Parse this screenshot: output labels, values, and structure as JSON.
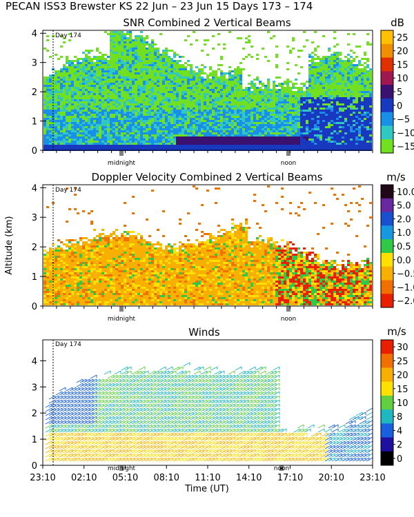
{
  "header": {
    "title": "PECAN ISS3 Brewster KS  22 Jun – 23 Jun 15 Days 173 – 174"
  },
  "chart_data": [
    {
      "type": "heatmap",
      "title": "SNR Combined 2 Vertical Beams",
      "ylabel": "",
      "ylim": [
        0,
        4.1
      ],
      "y_ticks": [
        "0",
        "1",
        "2",
        "3",
        "4"
      ],
      "annotations": {
        "day_label": "Day 174",
        "midnight": "midnight",
        "noon": "noon"
      },
      "colorbar": {
        "unit": "dB",
        "labels": [
          "25",
          "20",
          "15",
          "10",
          "5",
          "0",
          "−5",
          "−10",
          "−15"
        ],
        "colors": [
          "#ffc000",
          "#f09000",
          "#e03000",
          "#a01850",
          "#3a1070",
          "#1838c0",
          "#1890e8",
          "#30c8c0",
          "#70e020"
        ]
      }
    },
    {
      "type": "heatmap",
      "title": "Doppler Velocity Combined 2 Vertical Beams",
      "ylabel": "Altitude (km)",
      "ylim": [
        0,
        4.1
      ],
      "y_ticks": [
        "0",
        "1",
        "2",
        "3",
        "4"
      ],
      "annotations": {
        "day_label": "Day 174",
        "midnight": "midnight",
        "noon": "noon"
      },
      "colorbar": {
        "unit": "m/s",
        "labels": [
          "10.0",
          "5.0",
          "2.0",
          "1.0",
          "0.5",
          "0.0",
          "−0.5",
          "−1.0",
          "−2.0"
        ],
        "colors": [
          "#200818",
          "#6828a0",
          "#1850d0",
          "#1898e0",
          "#30c848",
          "#ffe000",
          "#f8b000",
          "#f07000",
          "#e82000"
        ]
      }
    },
    {
      "type": "scatter",
      "title": "Winds",
      "xlabel": "Time (UT)",
      "ylim": [
        0,
        4.8
      ],
      "y_ticks": [
        "0",
        "1",
        "2",
        "3",
        "4"
      ],
      "x_ticks": [
        "23:10",
        "02:10",
        "05:10",
        "08:10",
        "11:10",
        "14:10",
        "17:10",
        "20:10",
        "23:10"
      ],
      "annotations": {
        "day_label": "Day 174",
        "midnight": "midnight",
        "noon": "noon"
      },
      "colorbar": {
        "unit": "m/s",
        "labels": [
          "30",
          "25",
          "20",
          "15",
          "10",
          "8",
          "4",
          "2",
          "0"
        ],
        "colors": [
          "#e82000",
          "#f07000",
          "#f8b000",
          "#ffe000",
          "#60d040",
          "#20b8c0",
          "#1860e0",
          "#2010a0",
          "#000000"
        ]
      }
    }
  ]
}
